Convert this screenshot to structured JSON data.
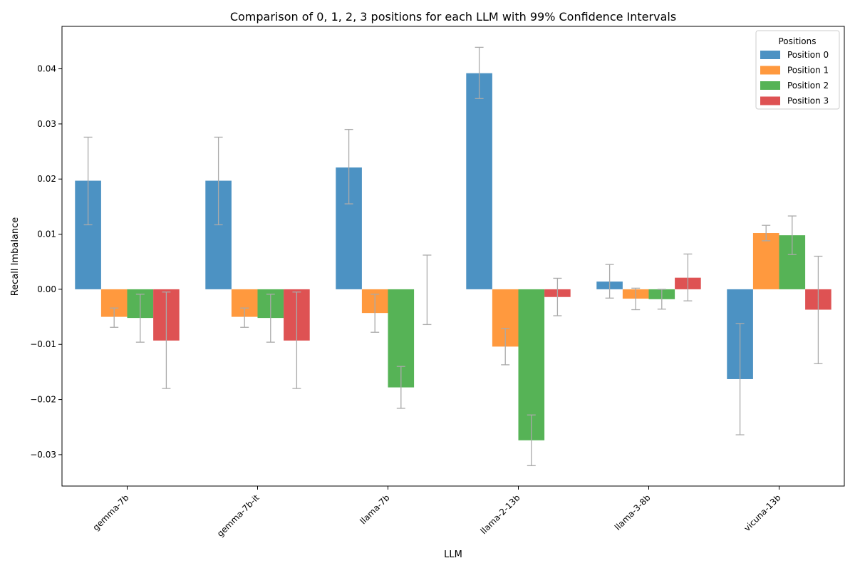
{
  "chart_data": {
    "type": "bar",
    "title": "Comparison of 0, 1, 2, 3 positions for each LLM with 99% Confidence Intervals",
    "xlabel": "LLM",
    "ylabel": "Recall Imbalance",
    "categories": [
      "gemma-7b",
      "gemma-7b-it",
      "llama-7b",
      "llama-2-13b",
      "llama-3-8b",
      "vicuna-13b"
    ],
    "ylim": [
      -0.0357,
      0.0477
    ],
    "yticks": [
      -0.03,
      -0.02,
      -0.01,
      0.0,
      0.01,
      0.02,
      0.03,
      0.04
    ],
    "ytick_labels": [
      "−0.03",
      "−0.02",
      "−0.01",
      "0.00",
      "0.01",
      "0.02",
      "0.03",
      "0.04"
    ],
    "grid": false,
    "legend": {
      "title": "Positions",
      "placement": "top-right"
    },
    "error_bar_color": "#aaaaaa",
    "series": [
      {
        "name": "Position 0",
        "color": "#1f77b4",
        "values": [
          0.0197,
          0.0197,
          0.0221,
          0.0392,
          0.0014,
          -0.0163
        ],
        "ci_low": [
          0.0117,
          0.0117,
          0.0155,
          0.0346,
          -0.0016,
          -0.0264
        ],
        "ci_high": [
          0.0276,
          0.0276,
          0.029,
          0.0439,
          0.0045,
          -0.0062
        ]
      },
      {
        "name": "Position 1",
        "color": "#ff7f0e",
        "values": [
          -0.005,
          -0.005,
          -0.0043,
          -0.0104,
          -0.0017,
          0.0102
        ],
        "ci_low": [
          -0.0069,
          -0.0069,
          -0.0078,
          -0.0137,
          -0.0037,
          0.0088
        ],
        "ci_high": [
          -0.0034,
          -0.0034,
          -0.0009,
          -0.0071,
          0.0002,
          0.0116
        ]
      },
      {
        "name": "Position 2",
        "color": "#2ca02c",
        "values": [
          -0.0052,
          -0.0052,
          -0.0178,
          -0.0274,
          -0.0018,
          0.0098
        ],
        "ci_low": [
          -0.0096,
          -0.0096,
          -0.0216,
          -0.032,
          -0.0036,
          0.0063
        ],
        "ci_high": [
          -0.0009,
          -0.0009,
          -0.014,
          -0.0228,
          0.0,
          0.0133
        ]
      },
      {
        "name": "Position 3",
        "color": "#d62728",
        "values": [
          -0.0093,
          -0.0093,
          0.0,
          -0.0014,
          0.0021,
          -0.0037
        ],
        "ci_low": [
          -0.018,
          -0.018,
          -0.0064,
          -0.0048,
          -0.0021,
          -0.0135
        ],
        "ci_high": [
          -0.0005,
          -0.0005,
          0.0062,
          0.002,
          0.0064,
          0.006
        ]
      }
    ]
  }
}
